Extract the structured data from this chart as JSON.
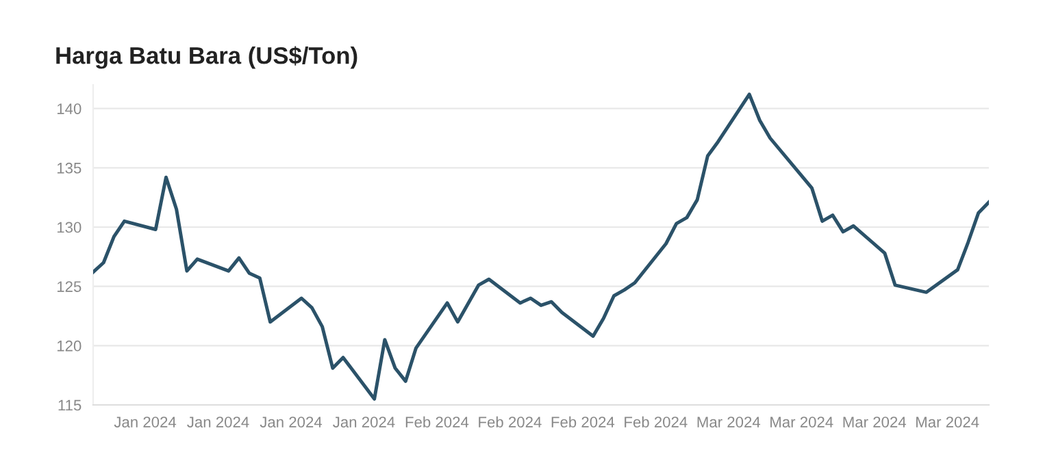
{
  "chart_data": {
    "type": "line",
    "title": "Harga Batu Bara (US$/Ton)",
    "x": [
      "2024-01-02",
      "2024-01-03",
      "2024-01-04",
      "2024-01-05",
      "2024-01-08",
      "2024-01-09",
      "2024-01-10",
      "2024-01-11",
      "2024-01-12",
      "2024-01-15",
      "2024-01-16",
      "2024-01-17",
      "2024-01-18",
      "2024-01-19",
      "2024-01-22",
      "2024-01-23",
      "2024-01-24",
      "2024-01-25",
      "2024-01-26",
      "2024-01-29",
      "2024-01-30",
      "2024-01-31",
      "2024-02-01",
      "2024-02-02",
      "2024-02-05",
      "2024-02-06",
      "2024-02-08",
      "2024-02-09",
      "2024-02-12",
      "2024-02-13",
      "2024-02-14",
      "2024-02-15",
      "2024-02-16",
      "2024-02-19",
      "2024-02-20",
      "2024-02-21",
      "2024-02-22",
      "2024-02-23",
      "2024-02-26",
      "2024-02-27",
      "2024-02-28",
      "2024-02-29",
      "2024-03-01",
      "2024-03-02",
      "2024-03-05",
      "2024-03-06",
      "2024-03-07",
      "2024-03-11",
      "2024-03-12",
      "2024-03-13",
      "2024-03-14",
      "2024-03-15",
      "2024-03-18",
      "2024-03-19",
      "2024-03-22",
      "2024-03-25",
      "2024-03-26",
      "2024-03-27",
      "2024-03-28"
    ],
    "series": [
      {
        "color": "#2b5269",
        "values": [
          126.2,
          127.0,
          129.2,
          130.5,
          129.8,
          134.2,
          131.5,
          126.3,
          127.3,
          126.3,
          127.4,
          126.1,
          125.7,
          122.0,
          124.0,
          123.2,
          121.6,
          118.1,
          119.0,
          115.5,
          120.5,
          118.1,
          117.0,
          119.8,
          123.6,
          122.0,
          125.1,
          125.6,
          123.6,
          124.0,
          123.4,
          123.7,
          122.8,
          120.8,
          122.3,
          124.2,
          124.7,
          125.3,
          128.6,
          130.3,
          130.8,
          132.3,
          136.0,
          137.2,
          141.2,
          139.0,
          137.5,
          133.3,
          130.5,
          131.0,
          129.6,
          130.1,
          127.8,
          125.1,
          124.5,
          126.4,
          128.7,
          131.2,
          132.1
        ]
      }
    ],
    "xlim": [
      "2024-01-02",
      "2024-03-28"
    ],
    "xticks": [
      {
        "value": "2024-01-07",
        "label": "Jan 2024"
      },
      {
        "value": "2024-01-14",
        "label": "Jan 2024"
      },
      {
        "value": "2024-01-21",
        "label": "Jan 2024"
      },
      {
        "value": "2024-01-28",
        "label": "Jan 2024"
      },
      {
        "value": "2024-02-04",
        "label": "Feb 2024"
      },
      {
        "value": "2024-02-11",
        "label": "Feb 2024"
      },
      {
        "value": "2024-02-18",
        "label": "Feb 2024"
      },
      {
        "value": "2024-02-25",
        "label": "Feb 2024"
      },
      {
        "value": "2024-03-03",
        "label": "Mar 2024"
      },
      {
        "value": "2024-03-10",
        "label": "Mar 2024"
      },
      {
        "value": "2024-03-17",
        "label": "Mar 2024"
      },
      {
        "value": "2024-03-24",
        "label": "Mar 2024"
      }
    ],
    "ylim": [
      115,
      142
    ],
    "yticks": [
      115,
      120,
      125,
      130,
      135,
      140
    ],
    "grid": "y",
    "marker": "none",
    "line_style": "solid"
  }
}
